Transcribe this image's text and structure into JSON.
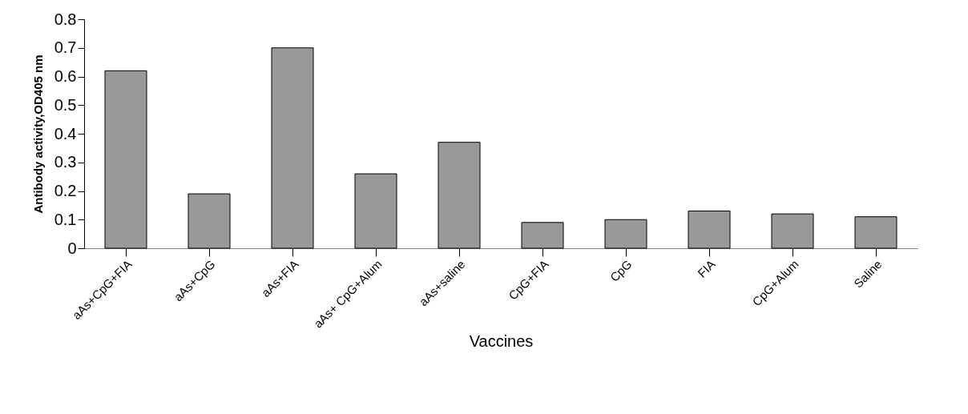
{
  "chart_data": {
    "type": "bar",
    "xlabel": "Vaccines",
    "ylabel": "Antibody activity,OD405 nm",
    "categories": [
      "aAs+CpG+FIA",
      "aAs+CpG",
      "aAs+FIA",
      "aAs+ CpG+Alum",
      "aAs+saline",
      "CpG+FIA",
      "CpG",
      "FIA",
      "CpG+Alum",
      "Saline"
    ],
    "values": [
      0.62,
      0.19,
      0.7,
      0.26,
      0.37,
      0.09,
      0.1,
      0.13,
      0.12,
      0.11
    ],
    "color": "#999999",
    "ylim": [
      0,
      0.8
    ],
    "yticks": [
      0,
      0.1,
      0.2,
      0.3,
      0.4,
      0.5,
      0.6,
      0.7,
      0.8
    ],
    "grid": false,
    "legend": false
  }
}
